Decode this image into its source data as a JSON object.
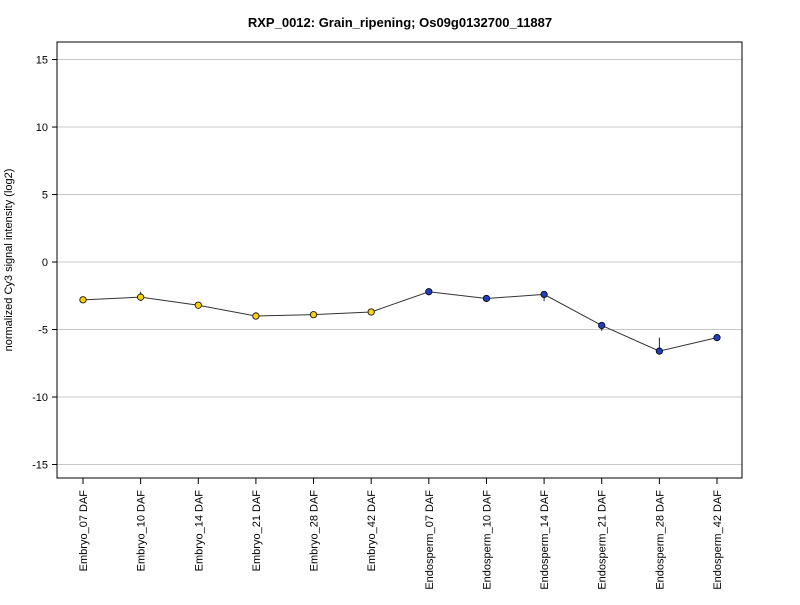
{
  "chart_data": {
    "type": "line",
    "title": "RXP_0012: Grain_ripening; Os09g0132700_11887",
    "xlabel": "",
    "ylabel": "normalized Cy3 signal intensity (log2)",
    "ylim": [
      -16,
      16.3
    ],
    "yticks": [
      -15,
      -10,
      -5,
      0,
      5,
      10,
      15
    ],
    "grid": true,
    "categories": [
      "Embryo_07 DAF",
      "Embryo_10 DAF",
      "Embryo_14 DAF",
      "Embryo_21 DAF",
      "Embryo_28 DAF",
      "Embryo_42 DAF",
      "Endosperm_07 DAF",
      "Endosperm_10 DAF",
      "Endosperm_14 DAF",
      "Endosperm_21 DAF",
      "Endosperm_28 DAF",
      "Endosperm_42 DAF"
    ],
    "values": [
      -2.8,
      -2.6,
      -3.2,
      -4.0,
      -3.9,
      -3.7,
      -2.2,
      -2.7,
      -2.4,
      -4.7,
      -6.6,
      -5.6
    ],
    "error_low": [
      -2.9,
      -2.9,
      -3.3,
      -4.1,
      -4.0,
      -3.8,
      -2.4,
      -2.8,
      -2.9,
      -5.1,
      -6.7,
      -5.7
    ],
    "error_high": [
      -2.7,
      -2.2,
      -3.1,
      -3.9,
      -3.8,
      -3.6,
      -2.0,
      -2.6,
      -2.2,
      -4.5,
      -5.6,
      -5.5
    ],
    "point_colors": [
      "#f5d20a",
      "#f5d20a",
      "#f5d20a",
      "#f5d20a",
      "#f5d20a",
      "#f5d20a",
      "#1f3fbf",
      "#1f3fbf",
      "#1f3fbf",
      "#1f3fbf",
      "#1f3fbf",
      "#1f3fbf"
    ],
    "line_color": "#333333",
    "grid_color": "#c8c8c8"
  }
}
